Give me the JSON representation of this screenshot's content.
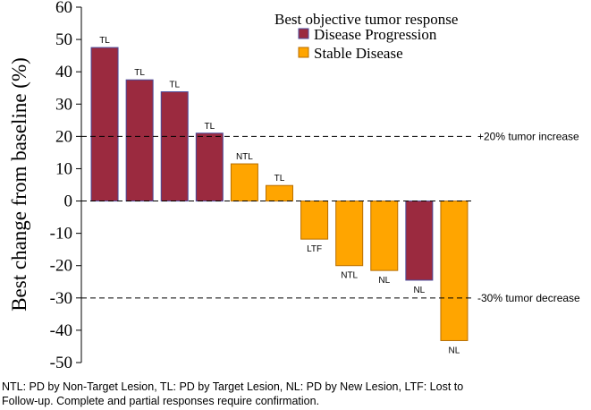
{
  "chart_data": {
    "type": "bar",
    "ylabel": "Best change from baseline (%)",
    "ylim": [
      -50,
      60
    ],
    "yticks": [
      60,
      50,
      40,
      30,
      20,
      10,
      0,
      -10,
      -20,
      -30,
      -40,
      -50
    ],
    "bars": [
      {
        "value": 47.5,
        "label": "TL",
        "response": "Disease Progression"
      },
      {
        "value": 37.5,
        "label": "TL",
        "response": "Disease Progression"
      },
      {
        "value": 33.8,
        "label": "TL",
        "response": "Disease Progression"
      },
      {
        "value": 21.0,
        "label": "TL",
        "response": "Disease Progression"
      },
      {
        "value": 11.5,
        "label": "NTL",
        "response": "Stable Disease"
      },
      {
        "value": 4.8,
        "label": "TL",
        "response": "Stable Disease"
      },
      {
        "value": -11.8,
        "label": "LTF",
        "response": "Stable Disease"
      },
      {
        "value": -20.0,
        "label": "NTL",
        "response": "Stable Disease"
      },
      {
        "value": -21.5,
        "label": "NL",
        "response": "Stable Disease"
      },
      {
        "value": -24.5,
        "label": "NL",
        "response": "Disease Progression"
      },
      {
        "value": -43.2,
        "label": "NL",
        "response": "Stable Disease"
      }
    ],
    "reference_lines": [
      {
        "value": 20,
        "label": "+20% tumor increase"
      },
      {
        "value": -30,
        "label": "-30% tumor decrease"
      }
    ],
    "legend": {
      "title": "Best objective tumor response",
      "placement": "top-right",
      "items": [
        {
          "name": "Disease Progression",
          "color": "#9b2a3f",
          "stroke": "#4a4a9a"
        },
        {
          "name": "Stable Disease",
          "color": "#ffa500",
          "stroke": "#b86e00"
        }
      ]
    },
    "grid": false
  },
  "footnote": {
    "line1": "NTL:  PD by Non-Target Lesion, TL: PD by Target Lesion, NL: PD by New Lesion, LTF:  Lost to",
    "line2": "Follow-up. Complete and partial responses require confirmation."
  }
}
